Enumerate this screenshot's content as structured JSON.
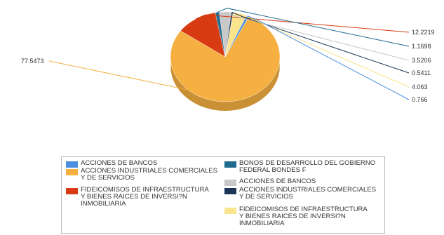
{
  "chart_data": {
    "type": "pie",
    "slices": [
      {
        "label": "ACCIONES INDUSTRIALES COMERCIALES Y DE SERVICIOS",
        "value": 77.5473,
        "value_label": "77.5473",
        "color": "#f5b041"
      },
      {
        "label": "FIDEICOMISOS DE INFRAESTRUCTURA Y BIENES RAICES DE INVERSI?N INMOBILIARIA",
        "value": 12.2219,
        "value_label": "12.2219",
        "color": "#d83b12"
      },
      {
        "label": "BONOS DE DESARROLLO DEL GOBIERNO FEDERAL BONDES F",
        "value": 1.1698,
        "value_label": "1.1698",
        "color": "#1f6b8e"
      },
      {
        "label": "ACCIONES DE BANCOS",
        "value": 3.5206,
        "value_label": "3.5206",
        "color": "#c8c8c8"
      },
      {
        "label": "ACCIONES INDUSTRIALES COMERCIALES Y DE SERVICIOS",
        "value": 0.5411,
        "value_label": "0.5411",
        "color": "#1c3557"
      },
      {
        "label": "FIDEICOMISOS DE INFRAESTRUCTURA Y BIENES RAICES DE INVERSI?N INMOBILIARIA",
        "value": 4.063,
        "value_label": "4.063",
        "color": "#fae48c"
      },
      {
        "label": "ACCIONES DE BANCOS",
        "value": 0.766,
        "value_label": "0.766",
        "color": "#4a8fe0"
      }
    ],
    "legend": {
      "placement": "bottom",
      "items": [
        {
          "label": "ACCIONES DE BANCOS",
          "color": "#4a8fe0"
        },
        {
          "label": "BONOS DE DESARROLLO DEL GOBIERNO\nFEDERAL BONDES F",
          "color": "#1f6b8e"
        },
        {
          "label": "ACCIONES INDUSTRIALES COMERCIALES\nY DE SERVICIOS",
          "color": "#f5b041"
        },
        {
          "label": "ACCIONES DE BANCOS",
          "color": "#c8c8c8"
        },
        {
          "label": "FIDEICOMISOS DE INFRAESTRUCTURA\nY BIENES RAICES DE INVERSI?N\nINMOBILIARIA",
          "color": "#d83b12"
        },
        {
          "label": "ACCIONES INDUSTRIALES COMERCIALES\nY DE SERVICIOS",
          "color": "#1c3557"
        },
        {
          "label": "",
          "color": ""
        },
        {
          "label": "FIDEICOMISOS DE INFRAESTRUCTURA\nY BIENES RAICES DE INVERSI?N\nINMOBILIARIA",
          "color": "#fae48c"
        }
      ]
    },
    "style": "3d-pie-with-leader-lines"
  }
}
